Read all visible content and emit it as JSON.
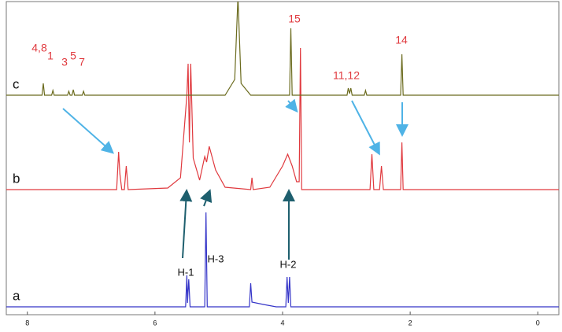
{
  "chart_data": {
    "type": "line",
    "xlim": [
      8.33,
      -0.33
    ],
    "xticks": [
      8,
      6,
      4,
      2,
      0
    ],
    "series": [
      {
        "name": "a",
        "color": "#3535c8",
        "x": [
          8.33,
          5.52,
          5.5,
          5.49,
          5.47,
          5.45,
          5.22,
          5.2,
          5.18,
          4.52,
          4.5,
          4.48,
          4.3,
          4.1,
          3.95,
          3.93,
          3.91,
          3.89,
          3.87,
          -0.33
        ],
        "values": [
          0,
          0,
          40,
          5,
          35,
          0,
          0,
          120,
          0,
          0,
          30,
          6,
          3,
          0,
          0,
          38,
          5,
          38,
          0,
          0
        ]
      },
      {
        "name": "b",
        "color": "#e0393e",
        "x": [
          8.33,
          6.6,
          6.57,
          6.55,
          6.52,
          6.48,
          6.45,
          6.42,
          5.8,
          5.6,
          5.5,
          5.48,
          5.46,
          5.44,
          5.4,
          5.3,
          5.22,
          5.19,
          5.15,
          5.05,
          4.9,
          4.5,
          4.48,
          4.46,
          4.2,
          4.0,
          3.92,
          3.85,
          3.78,
          3.74,
          3.72,
          3.7,
          3.6,
          2.63,
          2.6,
          2.57,
          2.48,
          2.45,
          2.42,
          2.15,
          2.13,
          2.11,
          -0.33
        ],
        "values": [
          0,
          0,
          48,
          20,
          0,
          0,
          30,
          0,
          2,
          15,
          120,
          160,
          60,
          160,
          40,
          12,
          42,
          35,
          55,
          25,
          3,
          0,
          15,
          0,
          3,
          30,
          45,
          30,
          10,
          10,
          180,
          0,
          0,
          0,
          45,
          0,
          0,
          30,
          0,
          0,
          60,
          0,
          0
        ]
      },
      {
        "name": "c",
        "color": "#6b6b1e",
        "x": [
          8.33,
          7.77,
          7.75,
          7.73,
          7.62,
          7.6,
          7.58,
          7.37,
          7.35,
          7.33,
          7.3,
          7.28,
          7.26,
          7.14,
          7.12,
          7.1,
          4.9,
          4.75,
          4.7,
          4.65,
          4.5,
          3.89,
          3.87,
          3.85,
          2.99,
          2.97,
          2.95,
          2.93,
          2.91,
          2.72,
          2.7,
          2.68,
          2.15,
          2.13,
          2.11,
          -0.33
        ],
        "values": [
          0,
          0,
          15,
          0,
          0,
          6,
          0,
          0,
          5,
          0,
          0,
          7,
          0,
          0,
          5,
          0,
          0,
          20,
          125,
          15,
          0,
          0,
          85,
          0,
          0,
          9,
          2,
          9,
          0,
          0,
          6,
          0,
          0,
          52,
          0,
          0
        ]
      }
    ],
    "annotations": [
      "4,8",
      "1",
      "3",
      "5",
      "7",
      "15",
      "11,12",
      "14"
    ],
    "proton_labels": [
      "H-1",
      "H-3",
      "H-2"
    ]
  }
}
